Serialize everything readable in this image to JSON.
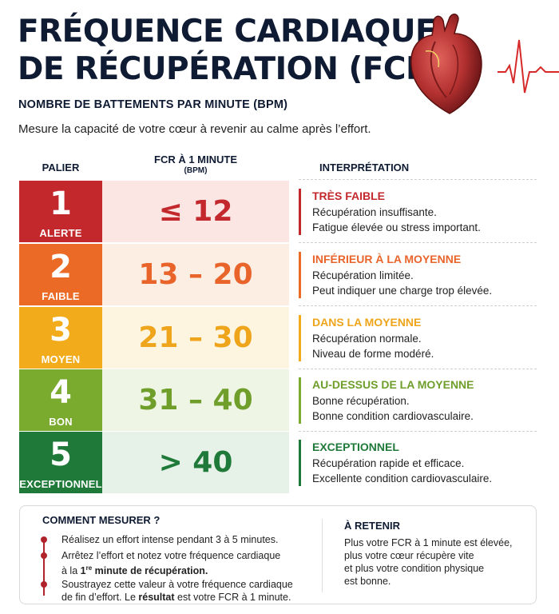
{
  "header": {
    "title_line1": "FRÉQUENCE CARDIAQUE",
    "title_line2": "DE RÉCUPÉRATION (FCR)",
    "subtitle": "NOMBRE DE BATTEMENTS PAR MINUTE (BPM)",
    "intro": "Mesure la capacité de votre cœur à revenir au calme après l’effort.",
    "illustration": "heart-with-pulse-line"
  },
  "table": {
    "headers": {
      "level": "PALIER",
      "fcr": "FCR À 1 MINUTE",
      "fcr_unit": "(BPM)",
      "interpretation": "INTERPRÉTATION"
    },
    "rows": [
      {
        "num": "1",
        "level": "ALERTE",
        "range": "≤ 12",
        "label": "TRÈS FAIBLE",
        "line1": "Récupération insuffisante.",
        "line2": "Fatigue élevée ou stress important.",
        "color": "#c3282d",
        "tint": "#fbe6e4",
        "text_color": "#c3282d"
      },
      {
        "num": "2",
        "level": "FAIBLE",
        "range": "13 – 20",
        "label": "INFÉRIEUR À LA MOYENNE",
        "line1": "Récupération limitée.",
        "line2": "Peut indiquer une charge trop élevée.",
        "color": "#eb6a25",
        "tint": "#fdeee3",
        "text_color": "#e8642a"
      },
      {
        "num": "3",
        "level": "MOYEN",
        "range": "21 – 30",
        "label": "DANS LA MOYENNE",
        "line1": "Récupération normale.",
        "line2": "Niveau de forme modéré.",
        "color": "#f2ac1b",
        "tint": "#fdf5e0",
        "text_color": "#eea51b"
      },
      {
        "num": "4",
        "level": "BON",
        "range": "31 – 40",
        "label": "AU-DESSUS DE LA MOYENNE",
        "line1": "Bonne récupération.",
        "line2": "Bonne condition cardiovasculaire.",
        "color": "#7aaa2e",
        "tint": "#eef5e4",
        "text_color": "#6f9e2b"
      },
      {
        "num": "5",
        "level": "EXCEPTIONNEL",
        "range": "> 40",
        "label": "EXCEPTIONNEL",
        "line1": "Récupération rapide et efficace.",
        "line2": "Excellente condition cardiovasculaire.",
        "color": "#1f7a3a",
        "tint": "#e6f1e8",
        "text_color": "#1f7a3a"
      }
    ]
  },
  "how_to": {
    "title": "COMMENT MESURER ?",
    "step1": "Réalisez un effort intense pendant 3 à 5 minutes.",
    "step2_a": "Arrêtez l’effort et notez votre fréquence cardiaque",
    "step2_b": "à la ",
    "step2_c": "1",
    "step2_d": "re",
    "step2_e": " minute ",
    "step2_f": "de récupération.",
    "step3_a": "Soustrayez cette valeur à votre fréquence cardiaque",
    "step3_b": "de fin d’effort. Le ",
    "step3_c": "résultat",
    "step3_d": " est votre FCR à 1 minute."
  },
  "remember": {
    "title": "À RETENIR",
    "line1": "Plus votre FCR à 1 minute est élevée,",
    "line2": "plus votre cœur récupère vite",
    "line3": "et plus votre condition physique",
    "line4": "est bonne."
  }
}
